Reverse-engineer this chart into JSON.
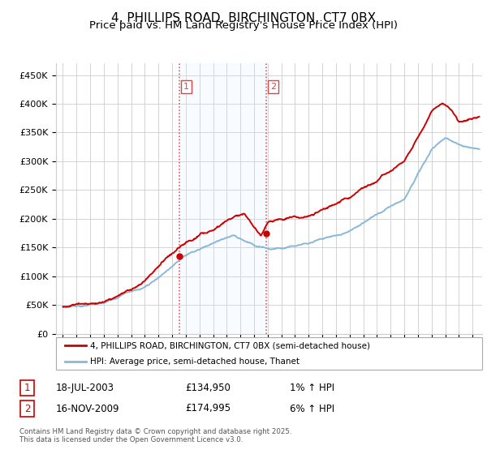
{
  "title": "4, PHILLIPS ROAD, BIRCHINGTON, CT7 0BX",
  "subtitle": "Price paid vs. HM Land Registry's House Price Index (HPI)",
  "title_fontsize": 11,
  "subtitle_fontsize": 9.5,
  "ylabel_ticks": [
    "£0",
    "£50K",
    "£100K",
    "£150K",
    "£200K",
    "£250K",
    "£300K",
    "£350K",
    "£400K",
    "£450K"
  ],
  "ytick_values": [
    0,
    50000,
    100000,
    150000,
    200000,
    250000,
    300000,
    350000,
    400000,
    450000
  ],
  "ylim": [
    0,
    470000
  ],
  "xlim_start": 1994.5,
  "xlim_end": 2025.7,
  "background_color": "#ffffff",
  "plot_bg_color": "#ffffff",
  "grid_color": "#cccccc",
  "sale1_date": 2003.54,
  "sale1_price": 134950,
  "sale2_date": 2009.88,
  "sale2_price": 174995,
  "vline_color": "#e84040",
  "shade_color": "#ddeeff",
  "legend_line1_color": "#cc0000",
  "legend_line2_color": "#89b8d8",
  "legend_label1": "4, PHILLIPS ROAD, BIRCHINGTON, CT7 0BX (semi-detached house)",
  "legend_label2": "HPI: Average price, semi-detached house, Thanet",
  "table_row1": [
    "1",
    "18-JUL-2003",
    "£134,950",
    "1% ↑ HPI"
  ],
  "table_row2": [
    "2",
    "16-NOV-2009",
    "£174,995",
    "6% ↑ HPI"
  ],
  "footer": "Contains HM Land Registry data © Crown copyright and database right 2025.\nThis data is licensed under the Open Government Licence v3.0.",
  "marker_color": "#cc0000",
  "hpi_color": "#89b8d8",
  "label1_box_color": "#cc0000",
  "label2_box_color": "#cc0000"
}
